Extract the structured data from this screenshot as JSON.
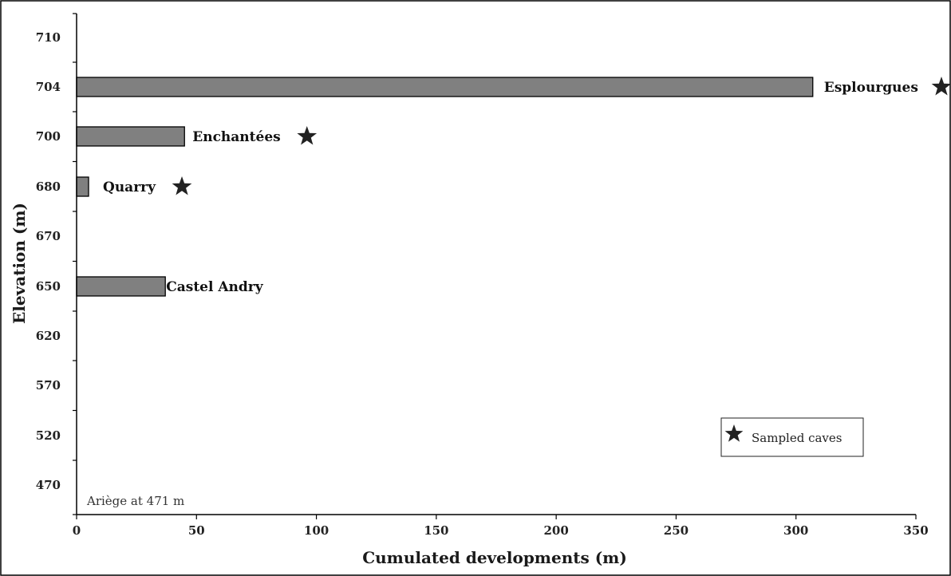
{
  "chart_data": {
    "type": "bar",
    "orientation": "horizontal",
    "title": "",
    "xlabel": "Cumulated developments (m)",
    "ylabel": "Elevation (m)",
    "xlim": [
      0,
      350
    ],
    "x_ticks": [
      0,
      50,
      100,
      150,
      200,
      250,
      300,
      350
    ],
    "y_tick_labels": [
      "710",
      "704",
      "700",
      "680",
      "670",
      "650",
      "620",
      "570",
      "520",
      "470"
    ],
    "bars": [
      {
        "name": "Esplourgues",
        "elevation": "704",
        "value": 307,
        "sampled": true
      },
      {
        "name": "Enchantées",
        "elevation": "700",
        "value": 45,
        "sampled": true
      },
      {
        "name": "Quarry",
        "elevation": "680",
        "value": 5,
        "sampled": true
      },
      {
        "name": "Castel Andry",
        "elevation": "650",
        "value": 37,
        "sampled": false
      }
    ],
    "annotation": "Ariège at 471 m",
    "legend": {
      "label": "Sampled caves",
      "marker": "star-icon",
      "position": "bottom-right"
    },
    "grid": false,
    "bar_color": "#808080"
  }
}
